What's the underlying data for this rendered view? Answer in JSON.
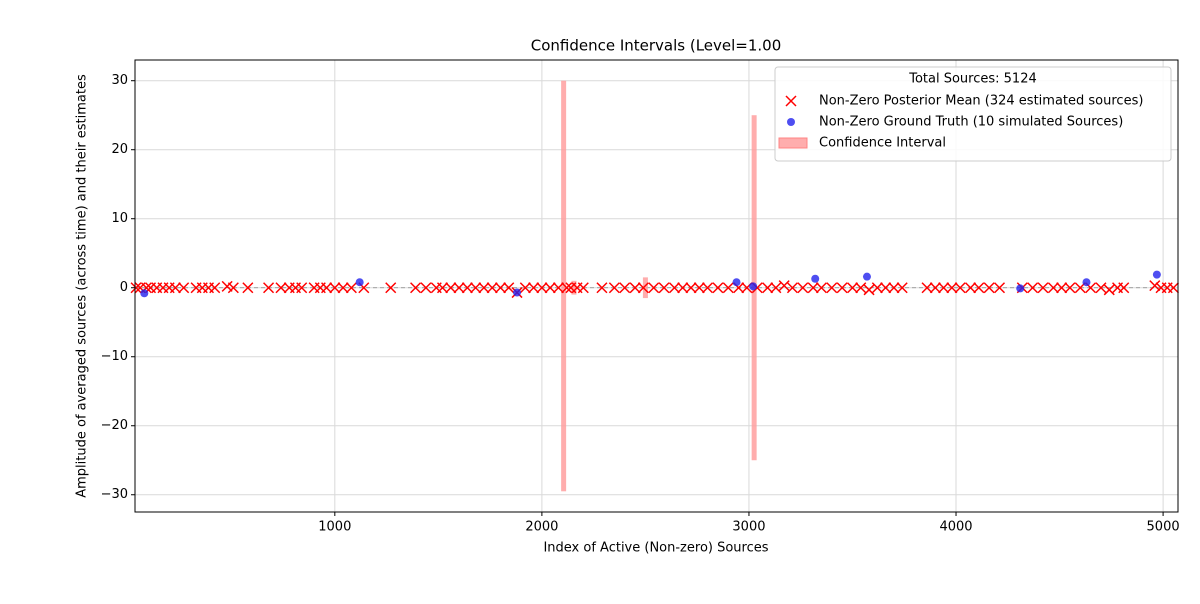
{
  "chart_data": {
    "type": "scatter",
    "title": "Confidence Intervals (Level=1.00",
    "xlabel": "Index of Active (Non-zero) Sources",
    "ylabel": "Amplitude of averaged sources (across time) and their estimates",
    "xlim": [
      35,
      5072
    ],
    "ylim": [
      -32.5,
      33
    ],
    "xticks": [
      1000,
      2000,
      3000,
      4000,
      5000
    ],
    "yticks": [
      {
        "value": -30,
        "label": "−30"
      },
      {
        "value": -20,
        "label": "−20"
      },
      {
        "value": -10,
        "label": "−10"
      },
      0,
      10,
      20,
      30
    ],
    "grid": true,
    "legend_position": "upper right",
    "legend_title": "Total Sources: 5124",
    "series": [
      {
        "name": "Non-Zero Posterior Mean (324 estimated sources)",
        "color": "#ff0000",
        "marker": "x",
        "x": [
          40,
          60,
          90,
          110,
          140,
          170,
          200,
          230,
          270,
          330,
          360,
          390,
          420,
          480,
          510,
          580,
          680,
          740,
          780,
          810,
          840,
          900,
          930,
          960,
          1000,
          1040,
          1080,
          1140,
          1270,
          1390,
          1440,
          1490,
          1520,
          1560,
          1600,
          1640,
          1680,
          1720,
          1760,
          1800,
          1840,
          1880,
          1920,
          1960,
          2000,
          2040,
          2080,
          2120,
          2140,
          2170,
          2200,
          2290,
          2350,
          2400,
          2450,
          2490,
          2540,
          2590,
          2640,
          2680,
          2720,
          2760,
          2800,
          2850,
          2900,
          2950,
          2990,
          3040,
          3090,
          3130,
          3170,
          3210,
          3260,
          3310,
          3350,
          3400,
          3450,
          3500,
          3540,
          3580,
          3620,
          3660,
          3700,
          3740,
          3860,
          3900,
          3940,
          3980,
          4020,
          4070,
          4110,
          4160,
          4210,
          4320,
          4370,
          4420,
          4470,
          4510,
          4550,
          4600,
          4650,
          4700,
          4740,
          4780,
          4810,
          4960,
          4990,
          5020,
          5050
        ],
        "values": [
          0,
          0,
          0,
          0,
          0,
          0,
          0,
          0,
          0,
          0,
          0,
          0,
          0,
          0.2,
          0,
          0,
          0,
          0,
          0,
          0,
          0,
          0,
          0,
          0,
          0,
          0,
          0,
          0,
          0,
          0,
          0,
          0,
          0,
          0,
          0,
          0,
          0,
          0,
          0,
          0,
          0,
          -0.7,
          0,
          0,
          0,
          0,
          0,
          0,
          0,
          0,
          0,
          0,
          0,
          0,
          0,
          0,
          0,
          0,
          0,
          0,
          0,
          0,
          0,
          0,
          0,
          0,
          0,
          0,
          0,
          0,
          0.3,
          0,
          0,
          0,
          0,
          0,
          0,
          0,
          0,
          -0.3,
          0,
          0,
          0,
          0,
          0,
          0,
          0,
          0,
          0,
          0,
          0,
          0,
          0,
          0,
          0,
          0,
          0,
          0,
          0,
          0,
          0,
          0,
          -0.3,
          0,
          0,
          0.3,
          0,
          0,
          0
        ]
      },
      {
        "name": "Non-Zero Ground Truth (10 simulated Sources)",
        "color": "#2222ee",
        "marker": "o",
        "x": [
          80,
          1120,
          1880,
          2940,
          3020,
          3320,
          3570,
          4310,
          4630,
          4970
        ],
        "values": [
          -0.8,
          0.8,
          -0.7,
          0.8,
          0.2,
          1.3,
          1.6,
          -0.1,
          0.8,
          1.9
        ]
      },
      {
        "name": "Confidence Interval",
        "color": "#ff9999",
        "marker": "band",
        "x": [
          2105,
          2155,
          2500,
          3025
        ],
        "lower": [
          -29.5,
          -1,
          -1.5,
          -25
        ],
        "upper": [
          30,
          1,
          1.5,
          25
        ]
      }
    ]
  }
}
